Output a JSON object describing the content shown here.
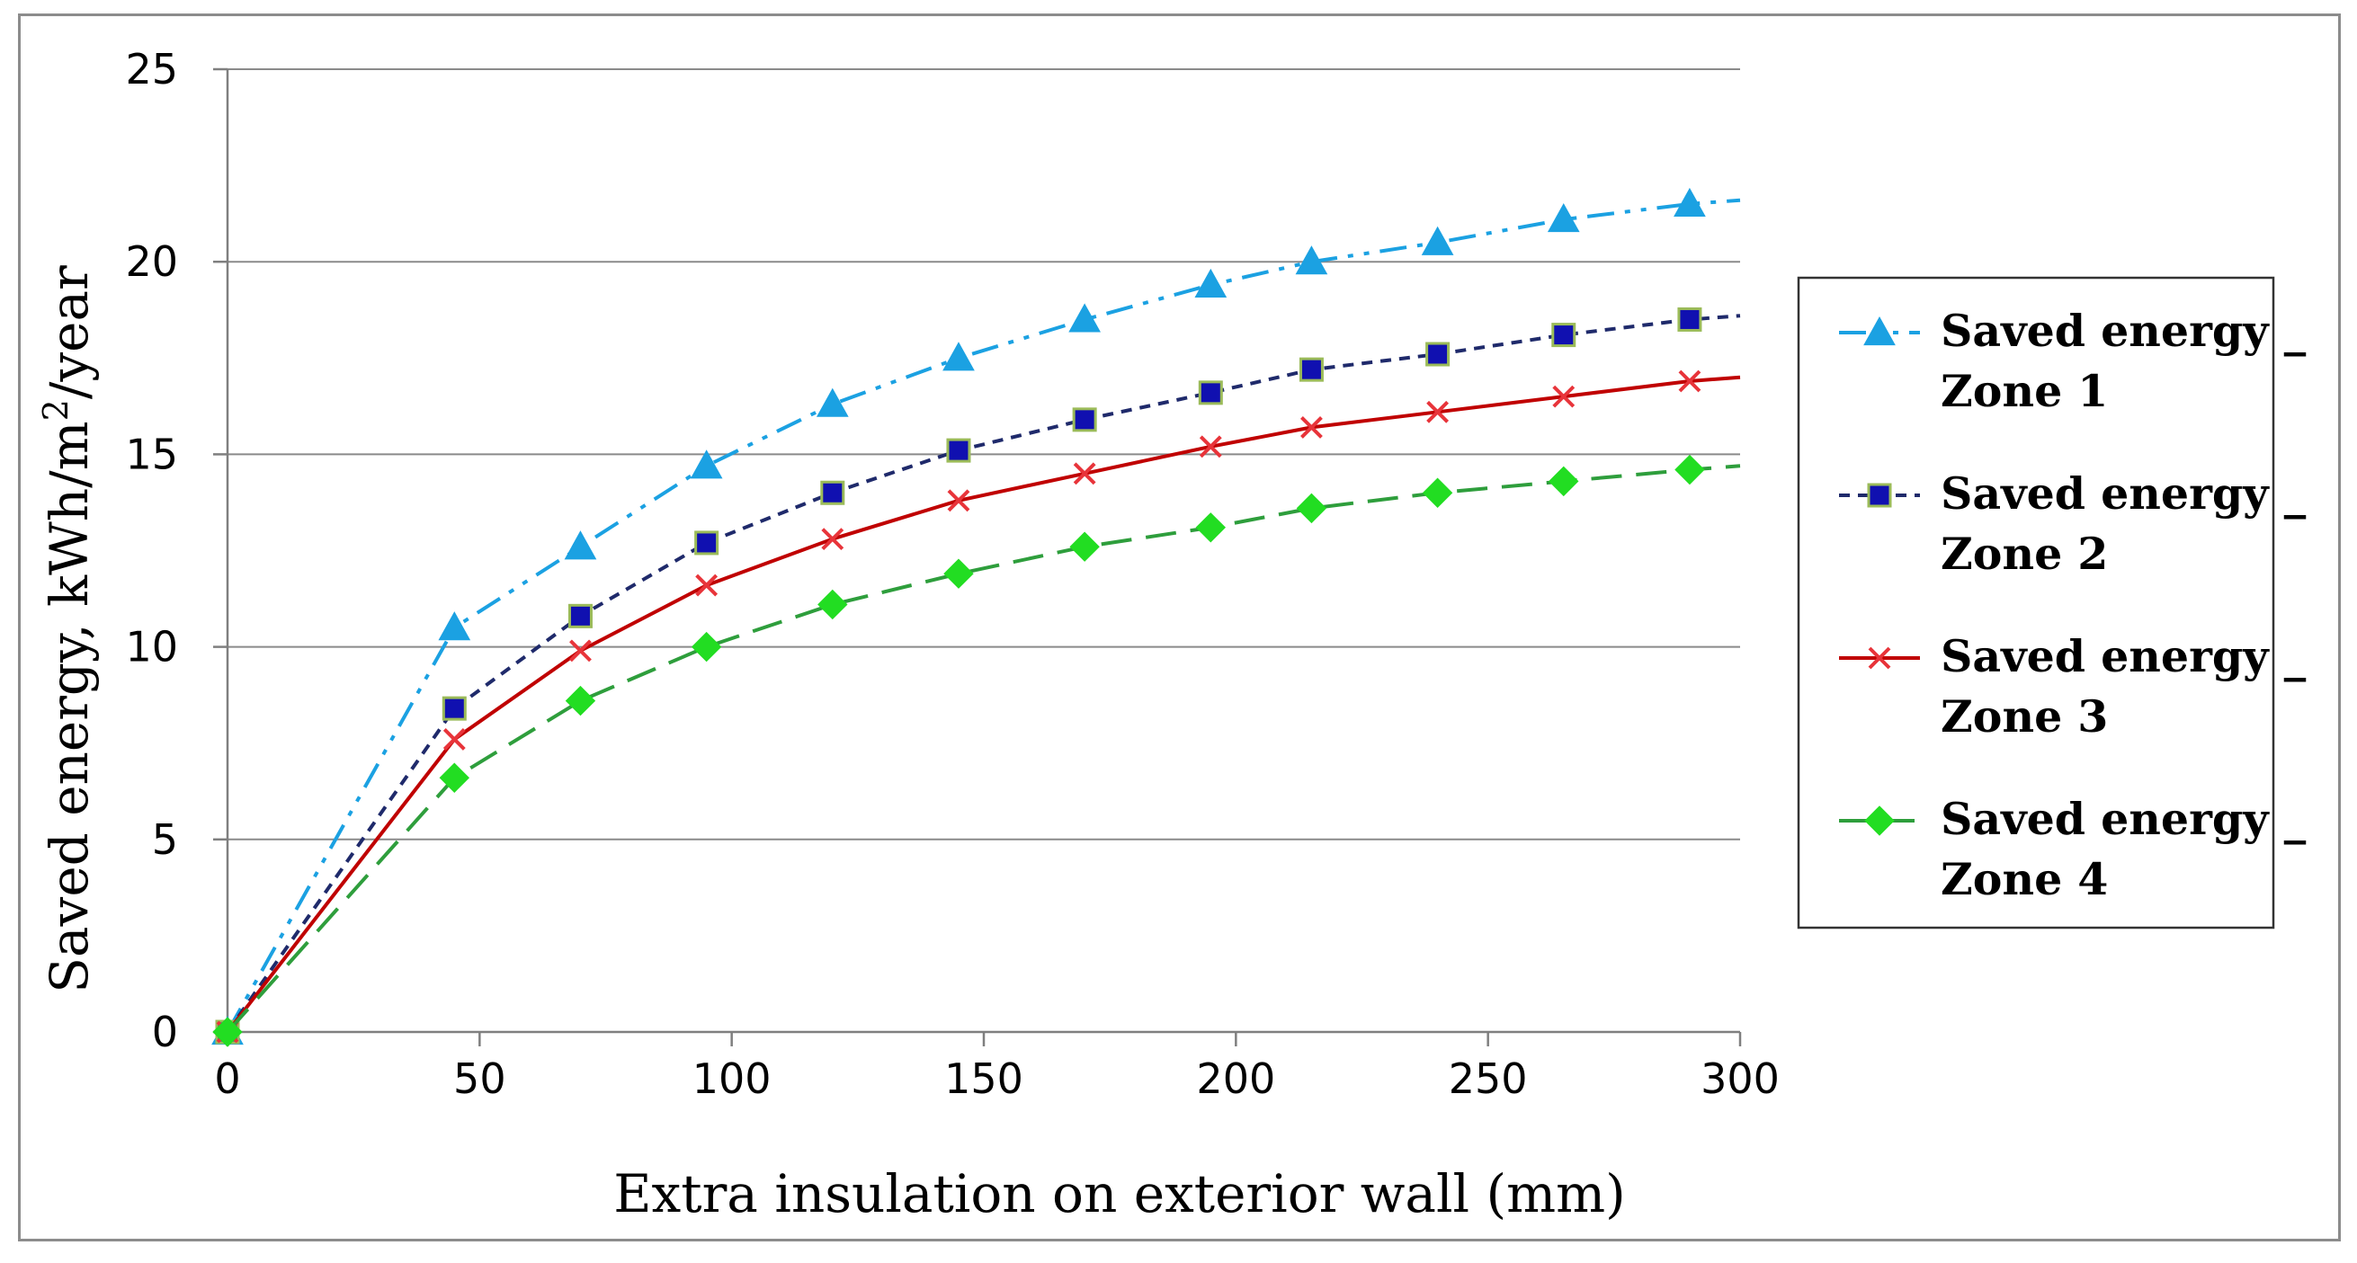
{
  "chart_data": {
    "type": "line",
    "title": "",
    "xlabel": "Extra insulation on exterior wall (mm)",
    "ylabel_main": "Saved energy, kWh/m",
    "ylabel_sup": "2",
    "ylabel_tail": "/year",
    "xlim": [
      0,
      300
    ],
    "ylim": [
      0,
      25
    ],
    "xticks": [
      0,
      50,
      100,
      150,
      200,
      250,
      300
    ],
    "yticks": [
      0,
      5,
      10,
      15,
      20,
      25
    ],
    "grid": "horizontal",
    "legend_position": "right",
    "x": [
      0,
      45,
      70,
      95,
      120,
      145,
      170,
      195,
      215,
      240,
      265,
      290
    ],
    "series": [
      {
        "name": "Saved energy _ Zone 1",
        "legend_line1": "Saved energy _",
        "legend_line2": "Zone 1",
        "color": "#1ba1e2",
        "marker": "triangle",
        "dash": "dash-dot-dot",
        "values": [
          0,
          10.5,
          12.6,
          14.7,
          16.3,
          17.5,
          18.5,
          19.4,
          20.0,
          20.5,
          21.1,
          21.5
        ],
        "end_value": 21.6
      },
      {
        "name": "Saved energy _ Zone 2",
        "legend_line1": "Saved energy _",
        "legend_line2": "Zone 2",
        "color": "#1f2a6b",
        "marker_fill": "#1010b0",
        "marker_edge": "#9bbb59",
        "marker": "square",
        "dash": "short-dash",
        "values": [
          0,
          8.4,
          10.8,
          12.7,
          14.0,
          15.1,
          15.9,
          16.6,
          17.2,
          17.6,
          18.1,
          18.5
        ],
        "end_value": 18.6
      },
      {
        "name": "Saved energy _ Zone 3",
        "legend_line1": "Saved energy _",
        "legend_line2": "Zone 3",
        "color": "#c00000",
        "marker_color": "#e8343a",
        "marker": "x",
        "dash": "solid",
        "values": [
          0,
          7.6,
          9.9,
          11.6,
          12.8,
          13.8,
          14.5,
          15.2,
          15.7,
          16.1,
          16.5,
          16.9
        ],
        "end_value": 17.0
      },
      {
        "name": "Saved energy _ Zone 4",
        "legend_line1": "Saved energy _",
        "legend_line2": "Zone 4",
        "color": "#2e9e3c",
        "marker_color": "#22dd22",
        "marker": "diamond",
        "dash": "long-dash",
        "values": [
          0,
          6.6,
          8.6,
          10.0,
          11.1,
          11.9,
          12.6,
          13.1,
          13.6,
          14.0,
          14.3,
          14.6
        ],
        "end_value": 14.7
      }
    ]
  }
}
